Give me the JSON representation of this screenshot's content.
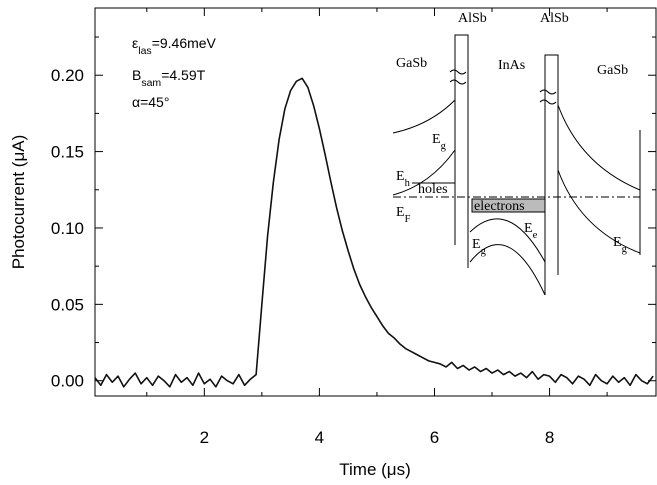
{
  "chart_data": {
    "type": "line",
    "x_label": "Time (μs)",
    "y_label": "Photocurrent (μA)",
    "xlim": [
      0.1,
      9.85
    ],
    "ylim": [
      -0.01,
      0.244
    ],
    "xticks": [
      2,
      4,
      6,
      8
    ],
    "xminorticks": [
      1,
      3,
      5,
      7,
      9
    ],
    "yticks": [
      {
        "value": 0,
        "label": "0.00"
      },
      {
        "value": 0.05,
        "label": "0.05"
      },
      {
        "value": 0.1,
        "label": "0.10"
      },
      {
        "value": 0.15,
        "label": "0.15"
      },
      {
        "value": 0.2,
        "label": "0.20"
      }
    ],
    "yminorticks": [
      0.025,
      0.075,
      0.125,
      0.175,
      0.225
    ],
    "color": "#111111",
    "annotations": [
      [
        "ε",
        "las",
        "=9.46meV"
      ],
      [
        "B",
        "sam",
        "=4.59T"
      ],
      [
        "α=45°"
      ]
    ],
    "inset_labels": [
      [
        "AlSb"
      ],
      [
        "AlSb"
      ],
      [
        "GaSb"
      ],
      [
        "InAs"
      ],
      [
        "GaSb"
      ],
      [
        "E",
        "g"
      ],
      [
        "E",
        "h"
      ],
      [
        "holes"
      ],
      [
        "E",
        "F"
      ],
      [
        "electrons"
      ],
      [
        "E",
        "e"
      ],
      [
        "E",
        "g"
      ],
      [
        "E",
        "g"
      ]
    ],
    "x": [
      0.1,
      0.2,
      0.3,
      0.4,
      0.5,
      0.6,
      0.7,
      0.8,
      0.9,
      1.0,
      1.1,
      1.2,
      1.3,
      1.4,
      1.5,
      1.6,
      1.7,
      1.8,
      1.9,
      2.0,
      2.1,
      2.2,
      2.3,
      2.4,
      2.5,
      2.6,
      2.7,
      2.8,
      2.9,
      3.0,
      3.1,
      3.2,
      3.3,
      3.4,
      3.5,
      3.6,
      3.7,
      3.8,
      3.9,
      4.0,
      4.1,
      4.2,
      4.3,
      4.4,
      4.5,
      4.6,
      4.7,
      4.8,
      4.9,
      5.0,
      5.1,
      5.2,
      5.3,
      5.4,
      5.5,
      5.6,
      5.7,
      5.8,
      5.9,
      6.0,
      6.1,
      6.2,
      6.3,
      6.4,
      6.5,
      6.6,
      6.7,
      6.8,
      6.9,
      7.0,
      7.1,
      7.2,
      7.3,
      7.4,
      7.5,
      7.6,
      7.7,
      7.8,
      7.9,
      8.0,
      8.1,
      8.2,
      8.3,
      8.4,
      8.5,
      8.6,
      8.7,
      8.8,
      8.9,
      9.0,
      9.1,
      9.2,
      9.3,
      9.4,
      9.5,
      9.6,
      9.7,
      9.8
    ],
    "values": [
      0.002,
      -0.003,
      0.004,
      -0.001,
      0.003,
      -0.004,
      0.001,
      0.005,
      -0.002,
      0.002,
      -0.003,
      0.003,
      0.0,
      -0.004,
      0.004,
      -0.001,
      0.002,
      -0.003,
      0.005,
      -0.002,
      0.001,
      -0.004,
      0.003,
      0.0,
      -0.002,
      0.004,
      -0.003,
      0.001,
      0.004,
      0.05,
      0.095,
      0.13,
      0.158,
      0.178,
      0.19,
      0.196,
      0.198,
      0.192,
      0.18,
      0.165,
      0.148,
      0.13,
      0.113,
      0.098,
      0.085,
      0.073,
      0.063,
      0.055,
      0.048,
      0.042,
      0.036,
      0.031,
      0.028,
      0.024,
      0.021,
      0.019,
      0.017,
      0.015,
      0.013,
      0.012,
      0.011,
      0.009,
      0.012,
      0.008,
      0.01,
      0.007,
      0.009,
      0.006,
      0.008,
      0.005,
      0.007,
      0.004,
      0.006,
      0.003,
      0.005,
      0.002,
      0.006,
      0.001,
      0.004,
      0.003,
      -0.001,
      0.004,
      0.002,
      -0.002,
      0.003,
      0.001,
      -0.003,
      0.004,
      0.0,
      -0.002,
      0.003,
      -0.001,
      0.002,
      -0.003,
      0.004,
      0.0,
      -0.002,
      0.003
    ]
  }
}
